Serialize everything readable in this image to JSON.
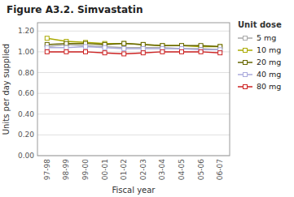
{
  "chart_data": {
    "type": "line",
    "title": "Figure A3.2. Simvastatin",
    "x_label": "Fiscal year",
    "y_label": "Units per day supplied",
    "legend_title": "Unit dose",
    "categories": [
      "97-98",
      "98-99",
      "99-00",
      "00-01",
      "01-02",
      "02-03",
      "03-04",
      "04-05",
      "05-06",
      "06-07"
    ],
    "series": [
      {
        "name": "5 mg",
        "color": "#aaaaaa",
        "values": [
          1.05,
          1.07,
          1.06,
          1.05,
          1.04,
          1.04,
          1.04,
          1.03,
          1.03,
          1.02
        ]
      },
      {
        "name": "10 mg",
        "color": "#aaaa00",
        "values": [
          1.13,
          1.1,
          1.09,
          1.08,
          1.08,
          1.07,
          1.06,
          1.06,
          1.05,
          1.05
        ]
      },
      {
        "name": "20 mg",
        "color": "#666600",
        "values": [
          1.07,
          1.08,
          1.08,
          1.07,
          1.08,
          1.07,
          1.06,
          1.06,
          1.06,
          1.05
        ]
      },
      {
        "name": "40 mg",
        "color": "#aaaadd",
        "values": [
          1.04,
          1.04,
          1.05,
          1.04,
          1.03,
          1.03,
          1.03,
          1.03,
          1.02,
          1.02
        ]
      },
      {
        "name": "80 mg",
        "color": "#cc2222",
        "values": [
          1.0,
          1.0,
          1.0,
          0.99,
          0.98,
          0.99,
          1.0,
          1.0,
          1.0,
          0.99
        ]
      }
    ],
    "ylim": [
      0.0,
      1.28
    ],
    "yticks": [
      {
        "value": 0.0,
        "label": "0.00"
      },
      {
        "value": 0.2,
        "label": "0.20"
      },
      {
        "value": 0.4,
        "label": "0.40"
      },
      {
        "value": 0.6,
        "label": "0.60"
      },
      {
        "value": 0.8,
        "label": "0.80"
      },
      {
        "value": 1.0,
        "label": "1.00"
      },
      {
        "value": 1.2,
        "label": "1.20"
      }
    ],
    "grid": true,
    "legend": "right",
    "marker": "square"
  }
}
